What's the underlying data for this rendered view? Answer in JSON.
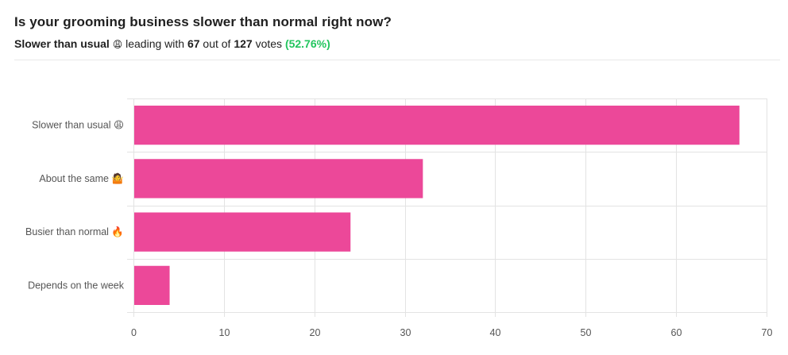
{
  "header": {
    "title": "Is your grooming business slower than normal right now?",
    "leader_label": "Slower than usual",
    "leader_emoji": "😩",
    "text_leading_with": "leading with",
    "leader_votes": "67",
    "text_out_of": "out of",
    "total_votes": "127",
    "text_votes": "votes",
    "leader_percent": "(52.76%)"
  },
  "colors": {
    "bar": "#ec4899",
    "grid": "#e3e3e3",
    "percent_text": "#22c55e"
  },
  "chart_data": {
    "type": "bar",
    "orientation": "horizontal",
    "categories": [
      "Slower than usual 😩",
      "About the same 🤷",
      "Busier than normal 🔥",
      "Depends on the week"
    ],
    "values": [
      67,
      32,
      24,
      4
    ],
    "xlim": [
      0,
      70
    ],
    "xticks": [
      0,
      10,
      20,
      30,
      40,
      50,
      60,
      70
    ],
    "grid": true
  }
}
